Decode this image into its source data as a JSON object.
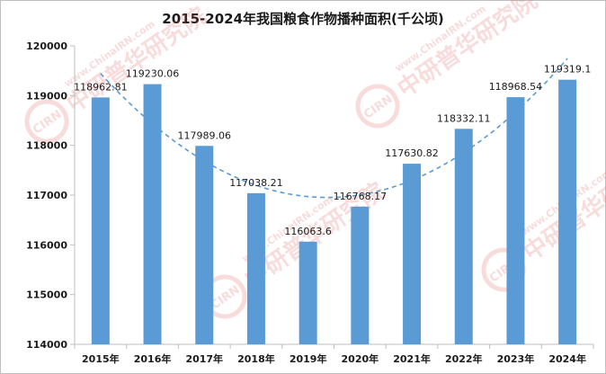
{
  "chart_data": {
    "type": "bar",
    "title": "2015-2024年我国粮食作物播种面积(千公顷)",
    "categories": [
      "2015年",
      "2016年",
      "2017年",
      "2018年",
      "2019年",
      "2020年",
      "2021年",
      "2022年",
      "2023年",
      "2024年"
    ],
    "values": [
      118962.81,
      119230.06,
      117989.06,
      117038.21,
      116063.6,
      116768.17,
      117630.82,
      118332.11,
      118968.54,
      119319.1
    ],
    "data_labels": [
      "118962.81",
      "119230.06",
      "117989.06",
      "117038.21",
      "116063.6",
      "116768.17",
      "117630.82",
      "118332.11",
      "118968.54",
      "119319.1"
    ],
    "ylim": [
      114000,
      120000
    ],
    "yticks": [
      114000,
      115000,
      116000,
      117000,
      118000,
      119000,
      120000
    ],
    "trendline": "polynomial",
    "grid": false,
    "legend": "none",
    "bar_color": "#5b9bd5",
    "trend_color": "#5b9bd5"
  },
  "watermark": {
    "logo_text": "CIRN",
    "cn_text": "中研普华研究院",
    "en_text": "www.ChinaIRN.com"
  }
}
